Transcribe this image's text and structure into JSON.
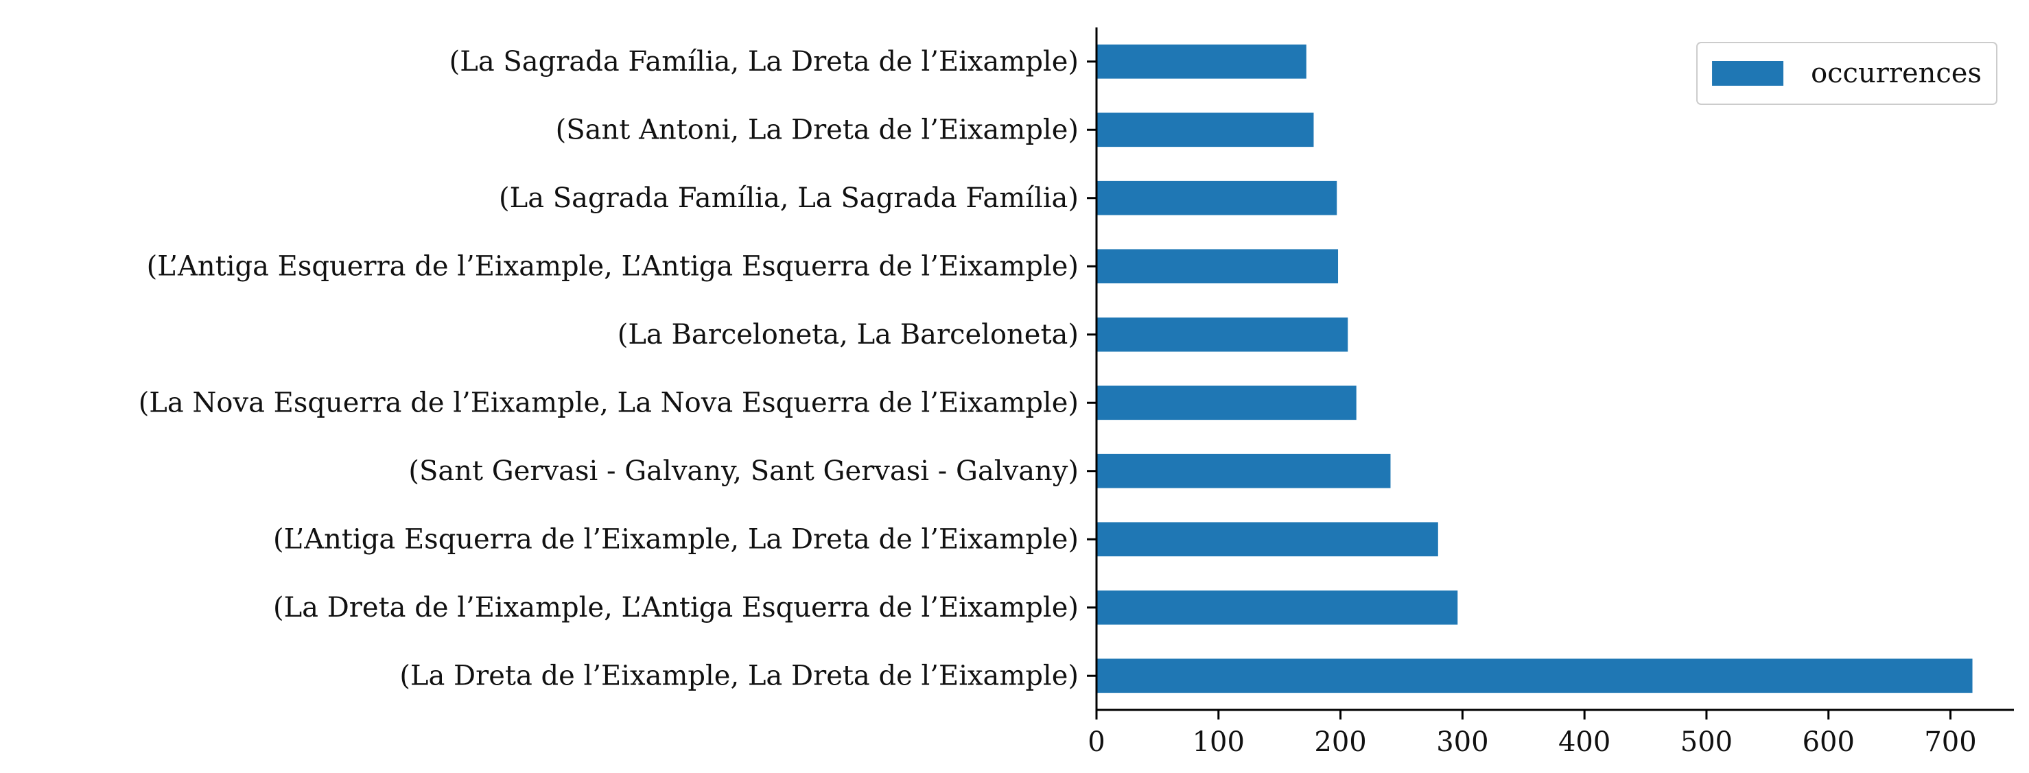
{
  "chart_data": {
    "type": "bar",
    "orientation": "horizontal",
    "categories": [
      "(La Dreta de l’Eixample, La Dreta de l’Eixample)",
      "(La Dreta de l’Eixample, L’Antiga Esquerra de l’Eixample)",
      "(L’Antiga Esquerra de l’Eixample, La Dreta de l’Eixample)",
      "(Sant Gervasi - Galvany, Sant Gervasi - Galvany)",
      "(La Nova Esquerra de l’Eixample, La Nova Esquerra de l’Eixample)",
      "(La Barceloneta, La Barceloneta)",
      "(L’Antiga Esquerra de l’Eixample, L’Antiga Esquerra de l’Eixample)",
      "(La Sagrada Família, La Sagrada Família)",
      "(Sant Antoni, La Dreta de l’Eixample)",
      "(La Sagrada Família, La Dreta de l’Eixample)"
    ],
    "series": [
      {
        "name": "occurrences",
        "color": "#1f77b4",
        "values": [
          718,
          296,
          280,
          241,
          213,
          206,
          198,
          197,
          178,
          172
        ]
      }
    ],
    "xlim": [
      0,
      752
    ],
    "xticks": [
      0,
      100,
      200,
      300,
      400,
      500,
      600,
      700
    ],
    "title": "",
    "xlabel": "",
    "ylabel": "",
    "grid": false,
    "legend": {
      "position": "top-right",
      "entries": [
        "occurrences"
      ]
    }
  }
}
